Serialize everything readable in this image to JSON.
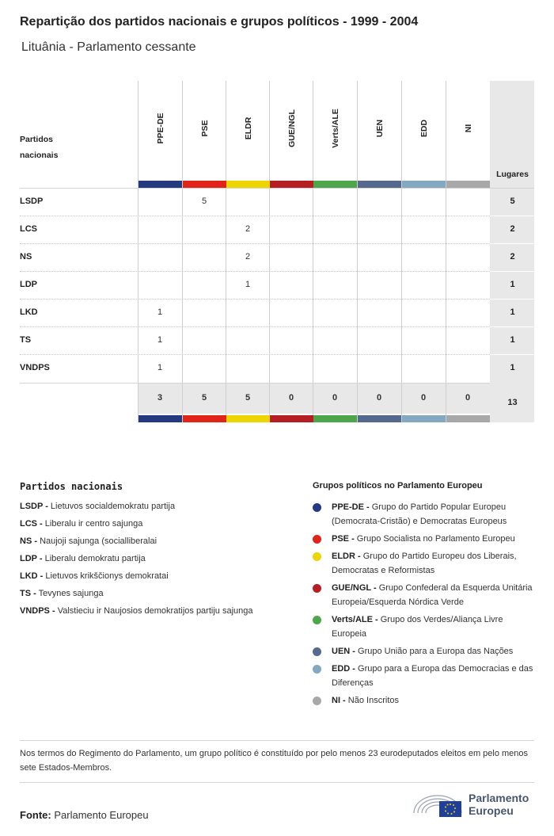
{
  "header": {
    "title": "Repartição dos partidos nacionais e grupos políticos - 1999 - 2004",
    "subtitle": "Lituânia - Parlamento cessante"
  },
  "table": {
    "row_header": "Partidos nacionais",
    "seats_header": "Lugares",
    "groups": [
      {
        "code": "PPE-DE",
        "color": "#243a80"
      },
      {
        "code": "PSE",
        "color": "#e2231a"
      },
      {
        "code": "ELDR",
        "color": "#ecd500"
      },
      {
        "code": "GUE/NGL",
        "color": "#b51f24"
      },
      {
        "code": "Verts/ALE",
        "color": "#4ea64a"
      },
      {
        "code": "UEN",
        "color": "#55698f"
      },
      {
        "code": "EDD",
        "color": "#82a9c1"
      },
      {
        "code": "NI",
        "color": "#a8a8a8"
      }
    ],
    "rows": [
      {
        "party": "LSDP",
        "cells": [
          "",
          "5",
          "",
          "",
          "",
          "",
          "",
          ""
        ],
        "seats": "5"
      },
      {
        "party": "LCS",
        "cells": [
          "",
          "",
          "2",
          "",
          "",
          "",
          "",
          ""
        ],
        "seats": "2"
      },
      {
        "party": "NS",
        "cells": [
          "",
          "",
          "2",
          "",
          "",
          "",
          "",
          ""
        ],
        "seats": "2"
      },
      {
        "party": "LDP",
        "cells": [
          "",
          "",
          "1",
          "",
          "",
          "",
          "",
          ""
        ],
        "seats": "1"
      },
      {
        "party": "LKD",
        "cells": [
          "1",
          "",
          "",
          "",
          "",
          "",
          "",
          ""
        ],
        "seats": "1"
      },
      {
        "party": "TS",
        "cells": [
          "1",
          "",
          "",
          "",
          "",
          "",
          "",
          ""
        ],
        "seats": "1"
      },
      {
        "party": "VNDPS",
        "cells": [
          "1",
          "",
          "",
          "",
          "",
          "",
          "",
          ""
        ],
        "seats": "1"
      }
    ],
    "totals": [
      "3",
      "5",
      "5",
      "0",
      "0",
      "0",
      "0",
      "0"
    ],
    "grand_total": "13"
  },
  "national_parties": {
    "title": "Partidos nacionais",
    "items": [
      {
        "code": "LSDP -",
        "name": "Lietuvos socialdemokratu partija"
      },
      {
        "code": "LCS -",
        "name": "Liberalu ir centro sajunga"
      },
      {
        "code": "NS -",
        "name": "Naujoji sajunga (socialliberalai"
      },
      {
        "code": "LDP -",
        "name": "Liberalu demokratu partija"
      },
      {
        "code": "LKD -",
        "name": "Lietuvos krikščionys demokratai"
      },
      {
        "code": "TS -",
        "name": "Tevynes sajunga"
      },
      {
        "code": "VNDPS -",
        "name": "Valstieciu ir Naujosios demokratijos partiju sajunga"
      }
    ]
  },
  "political_groups": {
    "title": "Grupos políticos no Parlamento Europeu",
    "items": [
      {
        "code": "PPE-DE -",
        "name": "Grupo do Partido Popular Europeu (Democrata-Cristão) e Democratas Europeus",
        "color": "#243a80"
      },
      {
        "code": "PSE -",
        "name": "Grupo Socialista no Parlamento Europeu",
        "color": "#e2231a"
      },
      {
        "code": "ELDR -",
        "name": "Grupo do Partido Europeu dos Liberais, Democratas e Reformistas",
        "color": "#ecd500"
      },
      {
        "code": "GUE/NGL -",
        "name": "Grupo Confederal da Esquerda Unitária Europeia/Esquerda Nórdica Verde",
        "color": "#b51f24"
      },
      {
        "code": "Verts/ALE -",
        "name": "Grupo dos Verdes/Aliança Livre Europeia",
        "color": "#4ea64a"
      },
      {
        "code": "UEN -",
        "name": "Grupo União para a Europa das Nações",
        "color": "#55698f"
      },
      {
        "code": "EDD -",
        "name": "Grupo para a Europa das Democracias e das Diferenças",
        "color": "#82a9c1"
      },
      {
        "code": "NI -",
        "name": "Não Inscritos",
        "color": "#a8a8a8"
      }
    ]
  },
  "note": "Nos termos do Regimento do Parlamento, um grupo político é constituído por pelo menos 23 eurodeputados eleitos em pelo menos sete Estados-Membros.",
  "source": {
    "label": "Fonte:",
    "value": "Parlamento Europeu"
  },
  "logo": {
    "line1": "Parlamento",
    "line2": "Europeu",
    "icon": "parliament-hemicycle-eu-flag-icon"
  }
}
